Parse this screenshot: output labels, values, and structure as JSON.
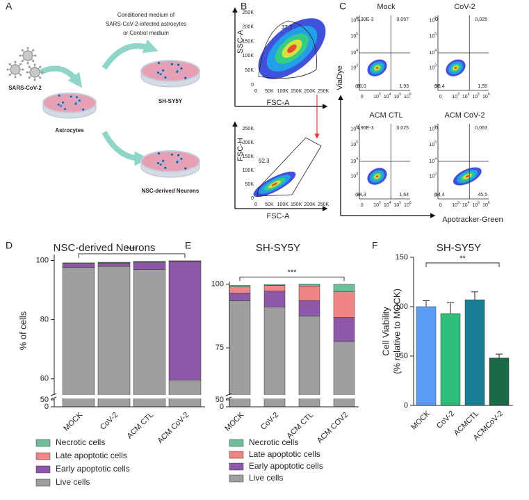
{
  "panels": {
    "a": "A",
    "b": "B",
    "c": "C",
    "d": "D",
    "e": "E",
    "f": "F"
  },
  "diagram": {
    "medium": [
      "Conditioned medium of",
      "SARS-CoV-2-infected astrocytes",
      "or  Control medium"
    ],
    "virus": "SARS-CoV-2",
    "astrocytes": "Astrocytes",
    "sh_sy5y": "SH-SY5Y",
    "neurons": "NSC-derived Neurons"
  },
  "gating": {
    "ticks": [
      "0",
      "50K",
      "100K",
      "150K",
      "200K",
      "250K"
    ],
    "plots": [
      {
        "x_label": "FSC-A",
        "y_label": "SSC-A",
        "gate": "37,7"
      },
      {
        "x_label": "FSC-A",
        "y_label": "FSC-H",
        "gate": "92,3"
      }
    ]
  },
  "flow": {
    "x_label": "Apotracker-Green",
    "y_label": "ViaDye",
    "ticks": [
      {
        "base": "0"
      },
      {
        "base": "10",
        "exp": "3"
      },
      {
        "base": "10",
        "exp": "4"
      },
      {
        "base": "10",
        "exp": "5"
      },
      {
        "base": "10",
        "exp": "6"
      }
    ],
    "plots": [
      {
        "title": "Mock",
        "quadrants": [
          "6,30E-3",
          "0,057",
          "98,0",
          "1,93"
        ]
      },
      {
        "title": "CoV-2",
        "quadrants": [
          "0",
          "0,025",
          "98,4",
          "1,55"
        ]
      },
      {
        "title": "ACM CTL",
        "quadrants": [
          "4,96E-3",
          "0,025",
          "98,3",
          "1,64"
        ]
      },
      {
        "title": "ACM CoV-2",
        "quadrants": [
          "0",
          "0,063",
          "54,4",
          "45,5"
        ]
      }
    ]
  },
  "chart_data": [
    {
      "type": "stacked_bar",
      "title": "NSC-derived Neurons",
      "y_label": "% of cells",
      "categories": [
        "MOCK",
        "CoV-2",
        "ACM CTL",
        "ACM CoV-2"
      ],
      "series": [
        {
          "name": "Live cells",
          "color": "#9e9e9e",
          "values": [
            97.6,
            98.0,
            96.9,
            59.6
          ]
        },
        {
          "name": "Early apoptotic cells",
          "color": "#8e57a8",
          "values": [
            1.2,
            1.0,
            2.4,
            40.0
          ]
        },
        {
          "name": "Late apoptotic cells",
          "color": "#f08585",
          "values": [
            0.2,
            0.2,
            0.2,
            0.2
          ]
        },
        {
          "name": "Necrotic cells",
          "color": "#6dbf9a",
          "values": [
            0.2,
            0.2,
            0.2,
            0.1
          ]
        }
      ],
      "ylim": [
        0,
        102
      ],
      "yticks": [
        0,
        50,
        60,
        80,
        100
      ],
      "y_break": [
        50,
        55
      ],
      "annotation": "****"
    },
    {
      "type": "stacked_bar",
      "title": "SH-SY5Y",
      "categories": [
        "MOCK",
        "CoV-2",
        "ACM CTL",
        "ACM COV2"
      ],
      "series": [
        {
          "name": "Live cells",
          "color": "#9e9e9e",
          "values": [
            93.5,
            91.0,
            87.5,
            77.5
          ]
        },
        {
          "name": "Early apoptotic cells",
          "color": "#8e57a8",
          "values": [
            3.0,
            6.3,
            6.0,
            9.5
          ]
        },
        {
          "name": "Late apoptotic cells",
          "color": "#f08585",
          "values": [
            2.5,
            2.2,
            5.8,
            10.0
          ]
        },
        {
          "name": "Necrotic cells",
          "color": "#6dbf9a",
          "values": [
            0.5,
            0.4,
            0.8,
            3.0
          ]
        }
      ],
      "ylim": [
        0,
        101
      ],
      "yticks": [
        0,
        50,
        75,
        100
      ],
      "y_break": [
        50,
        57
      ],
      "annotation": "***"
    },
    {
      "type": "bar",
      "title": "SH-SY5Y",
      "y_label": [
        "Cell Viability",
        "(% relative to MOCK)"
      ],
      "categories": [
        "MOCK",
        "CoV-2",
        "ACMCTL",
        "ACMCoV-2"
      ],
      "values": [
        100,
        93,
        107,
        48
      ],
      "errors": [
        6,
        11,
        8,
        4
      ],
      "colors": [
        "#5b9cf6",
        "#2dbf7a",
        "#1a7f96",
        "#1a6b45"
      ],
      "ylim": [
        0,
        150
      ],
      "yticks": [
        0,
        50,
        100,
        150
      ],
      "annotation": "**"
    }
  ]
}
